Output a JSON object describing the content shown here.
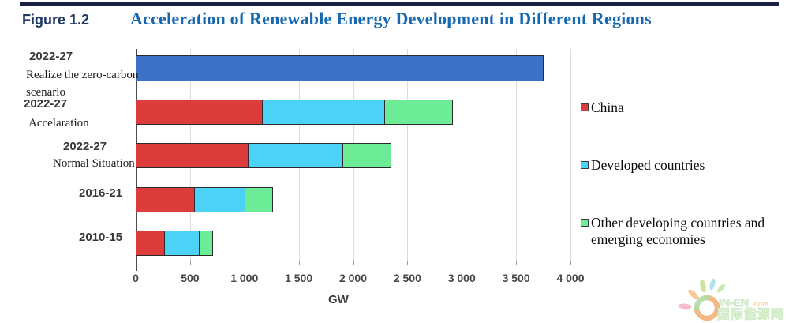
{
  "header": {
    "figure_label": "Figure 1.2",
    "title": "Acceleration of Renewable Energy Development in Different Regions"
  },
  "chart_data": {
    "type": "bar",
    "orientation": "horizontal",
    "stacked": true,
    "title": "Acceleration of Renewable Energy Development in Different Regions",
    "xlabel": "GW",
    "ylabel": "",
    "xlim": [
      0,
      4000
    ],
    "grid": true,
    "legend_position": "right",
    "x_ticks": [
      0,
      500,
      1000,
      1500,
      2000,
      2500,
      3000,
      3500,
      4000
    ],
    "x_tick_labels": [
      "0",
      "500",
      "1 000",
      "1 500",
      "2 000",
      "2 500",
      "3 000",
      "3 500",
      "4 000"
    ],
    "rows": [
      {
        "label_year": "2022-27",
        "label_sub": [
          "Realize the zero-carbon",
          "scenario"
        ],
        "segments": [
          {
            "name": "Zero-carbon scenario total",
            "value": 3750,
            "color": "#3c71c6"
          }
        ]
      },
      {
        "label_year": "2022-27",
        "label_sub": [
          "Accelaration"
        ],
        "segments": [
          {
            "name": "China",
            "value": 1170,
            "color": "#dd3c3c"
          },
          {
            "name": "Developed countries",
            "value": 1130,
            "color": "#4cd2f6"
          },
          {
            "name": "Other developing countries and emerging economies",
            "value": 620,
            "color": "#6cec97"
          }
        ]
      },
      {
        "label_year": "2022-27",
        "label_sub": [
          "Normal Situation"
        ],
        "segments": [
          {
            "name": "China",
            "value": 1040,
            "color": "#dd3c3c"
          },
          {
            "name": "Developed countries",
            "value": 870,
            "color": "#4cd2f6"
          },
          {
            "name": "Other developing countries and emerging economies",
            "value": 440,
            "color": "#6cec97"
          }
        ]
      },
      {
        "label_year": "2016-21",
        "label_sub": [],
        "segments": [
          {
            "name": "China",
            "value": 550,
            "color": "#dd3c3c"
          },
          {
            "name": "Developed countries",
            "value": 465,
            "color": "#4cd2f6"
          },
          {
            "name": "Other developing countries and emerging economies",
            "value": 245,
            "color": "#6cec97"
          }
        ]
      },
      {
        "label_year": "2010-15",
        "label_sub": [],
        "segments": [
          {
            "name": "China",
            "value": 275,
            "color": "#dd3c3c"
          },
          {
            "name": "Developed countries",
            "value": 320,
            "color": "#4cd2f6"
          },
          {
            "name": "Other developing countries and emerging economies",
            "value": 115,
            "color": "#6cec97"
          }
        ]
      }
    ],
    "legend": [
      {
        "label": "China",
        "color": "#dd3c3c"
      },
      {
        "label": "Developed countries",
        "color": "#4cd2f6"
      },
      {
        "label": "Other developing countries and emerging economies",
        "color": "#6cec97"
      }
    ],
    "colors": {
      "china": "#dd3c3c",
      "developed": "#4cd2f6",
      "other_developing": "#6cec97",
      "zero_carbon_total": "#3c71c6",
      "title_blue": "#1668b1",
      "figure_label_navy": "#1f3864"
    }
  },
  "watermark": {
    "brand": "IN-EN",
    "brand_suffix": ".com",
    "cjk": "国际能源网"
  }
}
